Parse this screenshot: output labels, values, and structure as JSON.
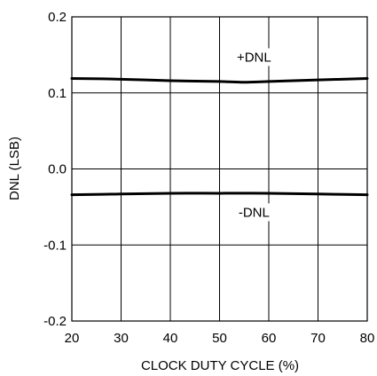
{
  "chart_data": {
    "type": "line",
    "xlabel": "CLOCK DUTY CYCLE (%)",
    "ylabel": "DNL (LSB)",
    "xlim": [
      20,
      80
    ],
    "ylim": [
      -0.2,
      0.2
    ],
    "x_ticks": [
      "20",
      "30",
      "40",
      "50",
      "60",
      "70",
      "80"
    ],
    "y_ticks": [
      "0.2",
      "0.1",
      "0.0",
      "-0.1",
      "-0.2"
    ],
    "grid": true,
    "series": [
      {
        "name": "+DNL",
        "x": [
          20,
          30,
          40,
          50,
          55,
          60,
          70,
          80
        ],
        "y": [
          0.119,
          0.118,
          0.116,
          0.115,
          0.114,
          0.115,
          0.117,
          0.119
        ]
      },
      {
        "name": "-DNL",
        "x": [
          20,
          30,
          40,
          50,
          60,
          70,
          80
        ],
        "y": [
          -0.034,
          -0.033,
          -0.032,
          -0.032,
          -0.032,
          -0.033,
          -0.034
        ]
      }
    ],
    "annotations": [
      {
        "text": "+DNL",
        "x": 57,
        "y": 0.147
      },
      {
        "text": "-DNL",
        "x": 57,
        "y": -0.057
      }
    ]
  }
}
